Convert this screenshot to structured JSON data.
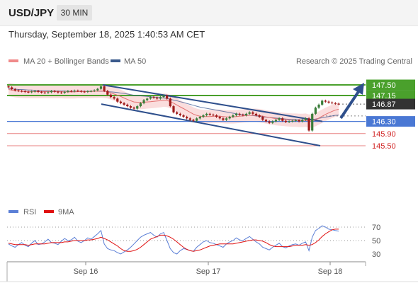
{
  "header": {
    "symbol": "USD/JPY",
    "interval": "30 MIN",
    "datetime": "Thursday, September 18, 2025 1:40:53 AM CET"
  },
  "legend": {
    "ma20_label": "MA 20 + Bollinger Bands",
    "ma50_label": "MA 50",
    "credit": "Research © 2025 Trading Central",
    "ma20_color": "#f08a8a",
    "ma50_color": "#3a5a8c"
  },
  "rsi_legend": {
    "rsi_label": "RSI",
    "ma9_label": "9MA",
    "rsi_color": "#5b7fd6",
    "ma9_color": "#e01010"
  },
  "colors": {
    "resistance_green": "#4aa02c",
    "support_blue": "#4a78d4",
    "support_red": "#e88080",
    "channel": "#2e4f8c",
    "candle_up": "#3a7d3a",
    "candle_down": "#9e1a1a",
    "current_price_bg": "#333333",
    "bollinger_fill": "#f9d4d4"
  },
  "chart_data": {
    "type": "candlestick",
    "instrument": "USD/JPY",
    "x_tick_labels": [
      "Sep 16",
      "Sep 17",
      "Sep 18"
    ],
    "y_range": [
      145.3,
      147.75
    ],
    "price_levels": [
      {
        "value": "147.50",
        "kind": "resistance",
        "color": "#4aa02c"
      },
      {
        "value": "147.15",
        "kind": "resistance",
        "color": "#4aa02c"
      },
      {
        "value": "146.87",
        "kind": "current",
        "color": "#333333"
      },
      {
        "value": "146.30",
        "kind": "pivot",
        "color": "#4a78d4"
      },
      {
        "value": "145.90",
        "kind": "support",
        "color": "#e88080"
      },
      {
        "value": "145.50",
        "kind": "support",
        "color": "#e88080"
      }
    ],
    "close_series": [
      147.42,
      147.36,
      147.32,
      147.3,
      147.29,
      147.27,
      147.26,
      147.28,
      147.3,
      147.27,
      147.25,
      147.24,
      147.26,
      147.3,
      147.28,
      147.25,
      147.24,
      147.27,
      147.3,
      147.29,
      147.31,
      147.3,
      147.28,
      147.27,
      147.29,
      147.3,
      147.32,
      147.37,
      147.45,
      147.3,
      147.18,
      147.1,
      147.05,
      146.95,
      146.9,
      146.85,
      146.8,
      146.75,
      146.72,
      146.8,
      146.9,
      147.0,
      147.05,
      147.1,
      147.08,
      147.05,
      147.1,
      147.15,
      147.05,
      146.8,
      146.6,
      146.55,
      146.5,
      146.45,
      146.4,
      146.35,
      146.32,
      146.4,
      146.45,
      146.5,
      146.55,
      146.52,
      146.5,
      146.45,
      146.4,
      146.35,
      146.4,
      146.45,
      146.5,
      146.55,
      146.52,
      146.5,
      146.55,
      146.6,
      146.55,
      146.5,
      146.45,
      146.35,
      146.3,
      146.25,
      146.3,
      146.35,
      146.4,
      146.32,
      146.28,
      146.3,
      146.32,
      146.34,
      146.3,
      146.35,
      146.4,
      146.0,
      146.55,
      146.75,
      146.85,
      146.98,
      146.95,
      146.92,
      146.9,
      146.88,
      146.87
    ],
    "ma20_series": [
      147.35,
      147.33,
      147.31,
      147.3,
      147.29,
      147.28,
      147.28,
      147.28,
      147.28,
      147.28,
      147.28,
      147.28,
      147.28,
      147.28,
      147.28,
      147.28,
      147.28,
      147.27,
      147.27,
      147.27,
      147.27,
      147.28,
      147.28,
      147.28,
      147.28,
      147.28,
      147.29,
      147.29,
      147.3,
      147.29,
      147.27,
      147.24,
      147.2,
      147.16,
      147.12,
      147.07,
      147.02,
      146.98,
      146.94,
      146.93,
      146.92,
      146.93,
      146.94,
      146.95,
      146.96,
      146.97,
      146.98,
      147.0,
      146.99,
      146.95,
      146.9,
      146.84,
      146.78,
      146.72,
      146.66,
      146.6,
      146.54,
      146.5,
      146.47,
      146.46,
      146.46,
      146.46,
      146.47,
      146.47,
      146.47,
      146.46,
      146.45,
      146.45,
      146.45,
      146.46,
      146.47,
      146.48,
      146.49,
      146.5,
      146.5,
      146.5,
      146.49,
      146.47,
      146.45,
      146.43,
      146.41,
      146.39,
      146.38,
      146.37,
      146.36,
      146.35,
      146.34,
      146.34,
      146.33,
      146.33,
      146.34,
      146.31,
      146.32,
      146.36,
      146.41,
      146.47,
      146.53,
      146.58,
      146.63,
      146.67,
      146.7
    ],
    "ma50_series": [
      147.38,
      147.37,
      147.36,
      147.35,
      147.35,
      147.34,
      147.33,
      147.33,
      147.32,
      147.32,
      147.31,
      147.31,
      147.31,
      147.3,
      147.3,
      147.3,
      147.3,
      147.3,
      147.29,
      147.29,
      147.29,
      147.29,
      147.29,
      147.29,
      147.29,
      147.29,
      147.29,
      147.29,
      147.29,
      147.29,
      147.28,
      147.27,
      147.26,
      147.25,
      147.23,
      147.22,
      147.2,
      147.18,
      147.16,
      147.15,
      147.14,
      147.13,
      147.12,
      147.11,
      147.1,
      147.09,
      147.08,
      147.07,
      147.05,
      147.03,
      147.0,
      146.98,
      146.95,
      146.92,
      146.89,
      146.86,
      146.83,
      146.8,
      146.77,
      146.75,
      146.73,
      146.71,
      146.69,
      146.67,
      146.65,
      146.63,
      146.61,
      146.59,
      146.57,
      146.55,
      146.53,
      146.52,
      146.51,
      146.5,
      146.49,
      146.48,
      146.47,
      146.45,
      146.44,
      146.43,
      146.42,
      146.41,
      146.4,
      146.39,
      146.38,
      146.37,
      146.36,
      146.36,
      146.35,
      146.35,
      146.35,
      146.34,
      146.36,
      146.38,
      146.4,
      146.42,
      146.44,
      146.46,
      146.48,
      146.5,
      146.51
    ],
    "rsi": {
      "y_ticks": [
        "70",
        "50",
        "30"
      ],
      "rsi_series": [
        45,
        42,
        40,
        44,
        47,
        43,
        41,
        46,
        50,
        44,
        45,
        48,
        52,
        47,
        46,
        44,
        49,
        53,
        50,
        51,
        55,
        49,
        47,
        50,
        54,
        52,
        56,
        60,
        65,
        45,
        38,
        36,
        35,
        32,
        30,
        33,
        36,
        40,
        45,
        50,
        55,
        58,
        60,
        62,
        58,
        55,
        60,
        62,
        50,
        38,
        32,
        30,
        35,
        38,
        37,
        35,
        34,
        40,
        44,
        48,
        50,
        47,
        46,
        44,
        42,
        40,
        45,
        48,
        50,
        54,
        51,
        50,
        53,
        56,
        52,
        48,
        45,
        40,
        38,
        36,
        40,
        43,
        46,
        41,
        39,
        42,
        44,
        45,
        43,
        46,
        48,
        35,
        55,
        65,
        68,
        72,
        70,
        67,
        66,
        65,
        64
      ],
      "ma9_series": [
        46,
        45,
        44,
        44,
        44,
        44,
        43,
        44,
        45,
        45,
        45,
        45,
        46,
        47,
        47,
        47,
        47,
        48,
        48,
        49,
        50,
        50,
        50,
        50,
        51,
        51,
        52,
        53,
        55,
        53,
        51,
        48,
        45,
        42,
        38,
        35,
        34,
        34,
        35,
        37,
        40,
        44,
        48,
        52,
        54,
        56,
        58,
        58,
        57,
        55,
        52,
        48,
        44,
        40,
        37,
        35,
        34,
        35,
        36,
        38,
        40,
        42,
        43,
        44,
        45,
        45,
        45,
        45,
        45,
        46,
        47,
        48,
        49,
        50,
        51,
        51,
        50,
        49,
        47,
        44,
        42,
        41,
        41,
        41,
        41,
        41,
        42,
        43,
        43,
        43,
        44,
        43,
        44,
        47,
        51,
        56,
        60,
        63,
        66,
        67,
        67
      ]
    }
  }
}
